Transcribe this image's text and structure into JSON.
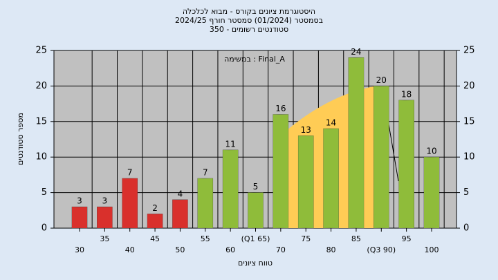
{
  "chart_data": {
    "type": "bar",
    "title": "היסטוגרמת ציונים בקורס - מבוא לכלכלה",
    "subtitle": "בסמסטר  (01/2024)  סמסטר חורף 2024/25",
    "subtitle2": "350 - סטודנטים רשומים",
    "annotation": "במשימה : Final_A",
    "ylabel": "מספר סטודנטים",
    "xlabel": "טווח ציונים",
    "categories": [
      "30",
      "35",
      "40",
      "45",
      "50",
      "55",
      "60",
      "(Q1 65)",
      "70",
      "75",
      "80",
      "85",
      "(Q3 90)",
      "95",
      "100"
    ],
    "values": [
      3,
      3,
      7,
      2,
      4,
      7,
      11,
      5,
      16,
      13,
      14,
      24,
      20,
      18,
      10
    ],
    "colors": [
      "#d9302c",
      "#d9302c",
      "#d9302c",
      "#d9302c",
      "#d9302c",
      "#8fbc3a",
      "#8fbc3a",
      "#8fbc3a",
      "#8fbc3a",
      "#8fbc3a",
      "#8fbc3a",
      "#8fbc3a",
      "#8fbc3a",
      "#8fbc3a",
      "#8fbc3a"
    ],
    "ylim": [
      0,
      25
    ],
    "yticks": [
      0,
      5,
      10,
      15,
      20,
      25
    ],
    "y2lim": [
      0,
      25
    ],
    "y2ticks": [
      0,
      5,
      10,
      15,
      20,
      25
    ],
    "grid": true
  }
}
